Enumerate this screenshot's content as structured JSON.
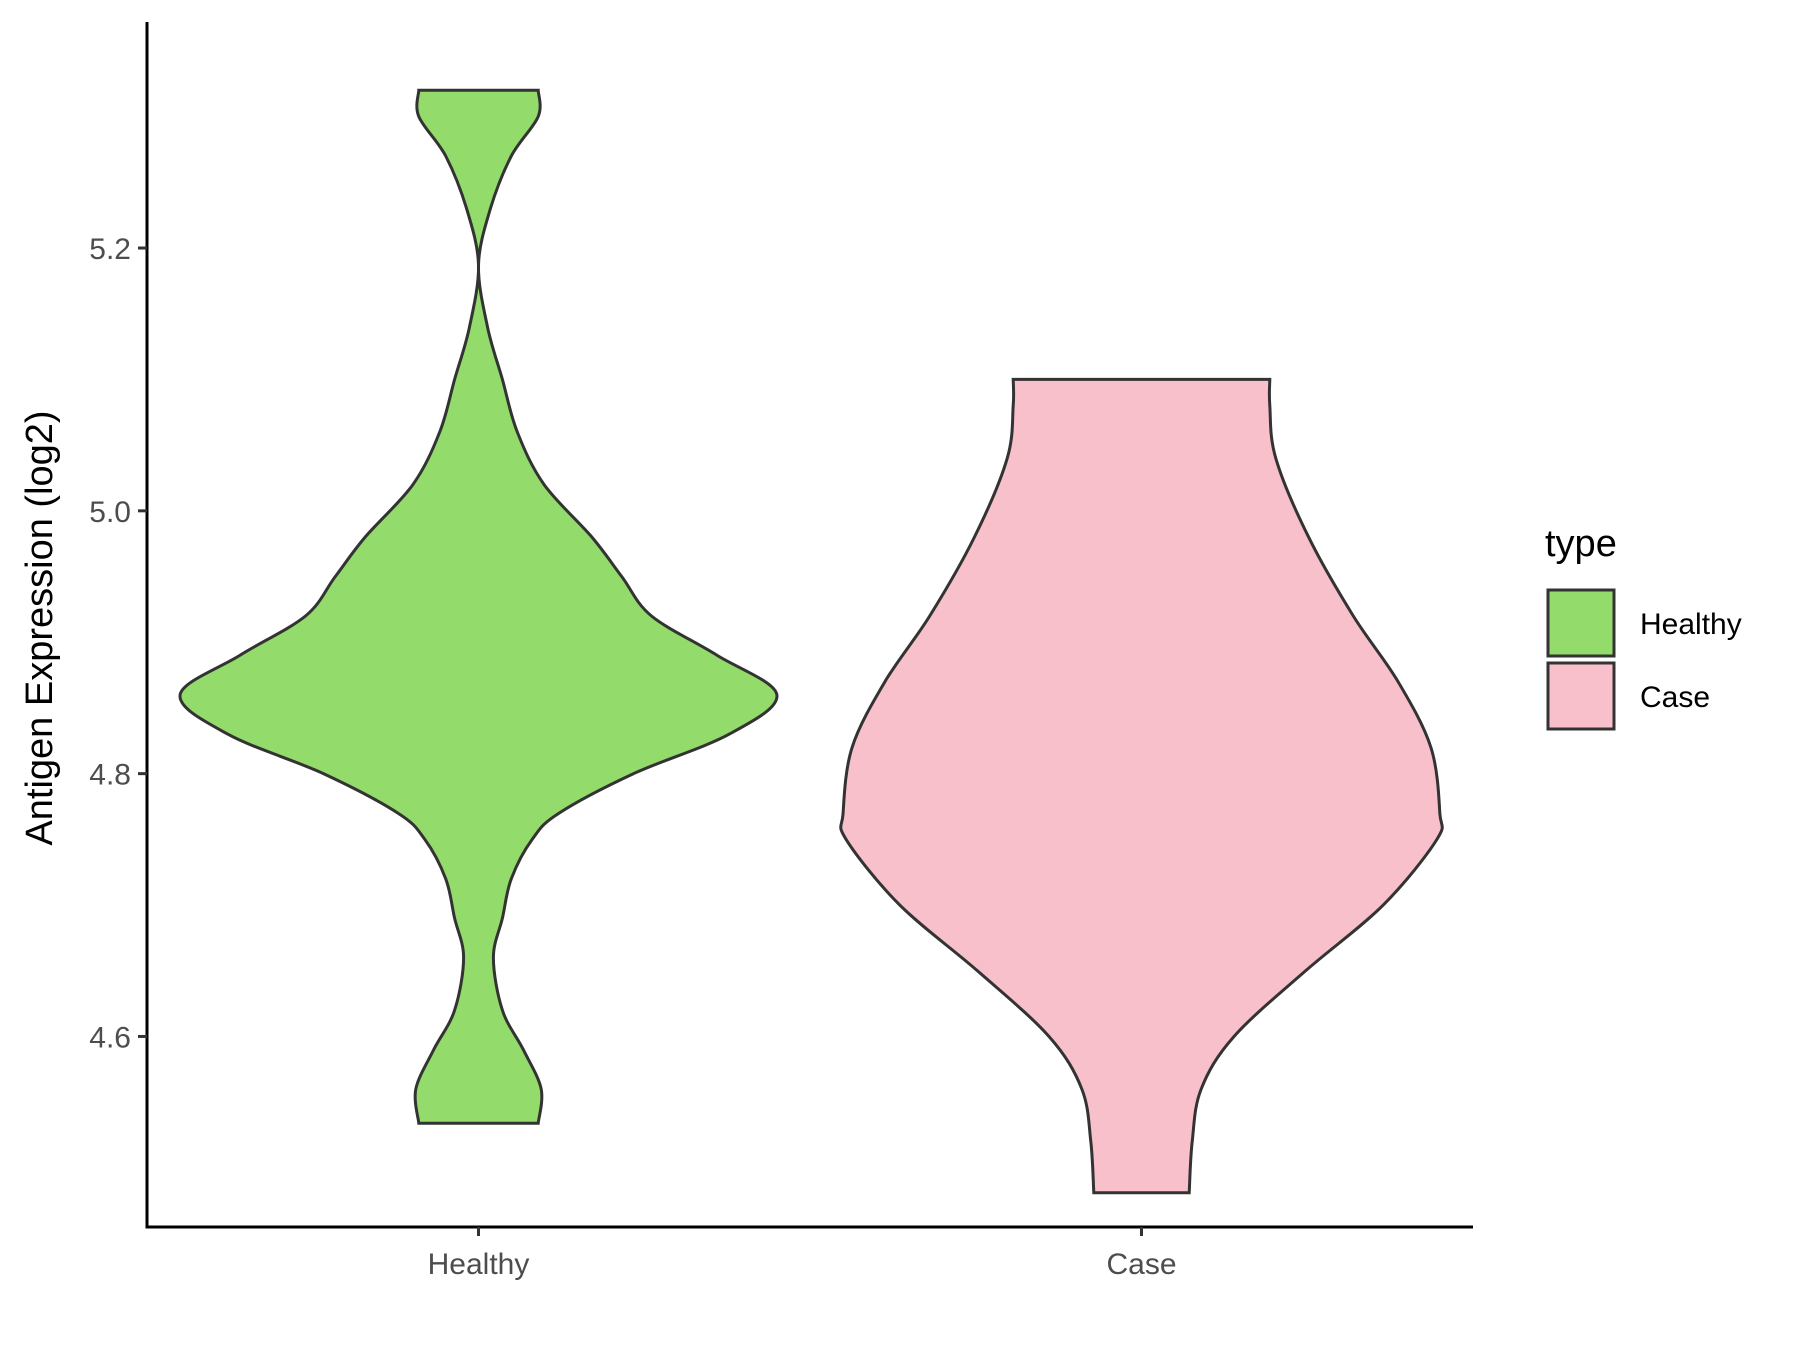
{
  "chart_data": {
    "type": "violin",
    "ylabel": "Antigen Expression (log2)",
    "xlabel": "",
    "ylim": [
      4.455,
      5.372
    ],
    "yticks": [
      4.6,
      4.8,
      5.0,
      5.2
    ],
    "ytick_labels": [
      "4.6",
      "4.8",
      "5.0",
      "5.2"
    ],
    "categories": [
      "Healthy",
      "Case"
    ],
    "legend": {
      "title": "type",
      "position": "right",
      "entries": [
        {
          "label": "Healthy",
          "color": "#93dc6b"
        },
        {
          "label": "Case",
          "color": "#f7c0cb"
        }
      ]
    },
    "series": [
      {
        "category": "Healthy",
        "color": "#93dc6b",
        "min": 4.534,
        "max": 5.32,
        "density_profile": [
          [
            4.534,
            0.2
          ],
          [
            4.56,
            0.21
          ],
          [
            4.59,
            0.15
          ],
          [
            4.62,
            0.08
          ],
          [
            4.66,
            0.05
          ],
          [
            4.69,
            0.08
          ],
          [
            4.72,
            0.11
          ],
          [
            4.75,
            0.18
          ],
          [
            4.77,
            0.27
          ],
          [
            4.8,
            0.52
          ],
          [
            4.83,
            0.84
          ],
          [
            4.86,
            1.0
          ],
          [
            4.89,
            0.8
          ],
          [
            4.92,
            0.58
          ],
          [
            4.95,
            0.48
          ],
          [
            4.98,
            0.38
          ],
          [
            5.02,
            0.22
          ],
          [
            5.06,
            0.13
          ],
          [
            5.1,
            0.08
          ],
          [
            5.14,
            0.03
          ],
          [
            5.187,
            0.0
          ],
          [
            5.23,
            0.04
          ],
          [
            5.27,
            0.11
          ],
          [
            5.3,
            0.2
          ],
          [
            5.32,
            0.2
          ]
        ]
      },
      {
        "category": "Case",
        "color": "#f7c0cb",
        "min": 4.481,
        "max": 5.1,
        "density_profile": [
          [
            4.481,
            0.16
          ],
          [
            4.52,
            0.17
          ],
          [
            4.56,
            0.2
          ],
          [
            4.6,
            0.31
          ],
          [
            4.65,
            0.55
          ],
          [
            4.7,
            0.81
          ],
          [
            4.75,
            0.99
          ],
          [
            4.77,
            1.0
          ],
          [
            4.82,
            0.97
          ],
          [
            4.87,
            0.86
          ],
          [
            4.92,
            0.71
          ],
          [
            4.98,
            0.56
          ],
          [
            5.04,
            0.45
          ],
          [
            5.08,
            0.43
          ],
          [
            5.1,
            0.43
          ]
        ]
      }
    ]
  }
}
